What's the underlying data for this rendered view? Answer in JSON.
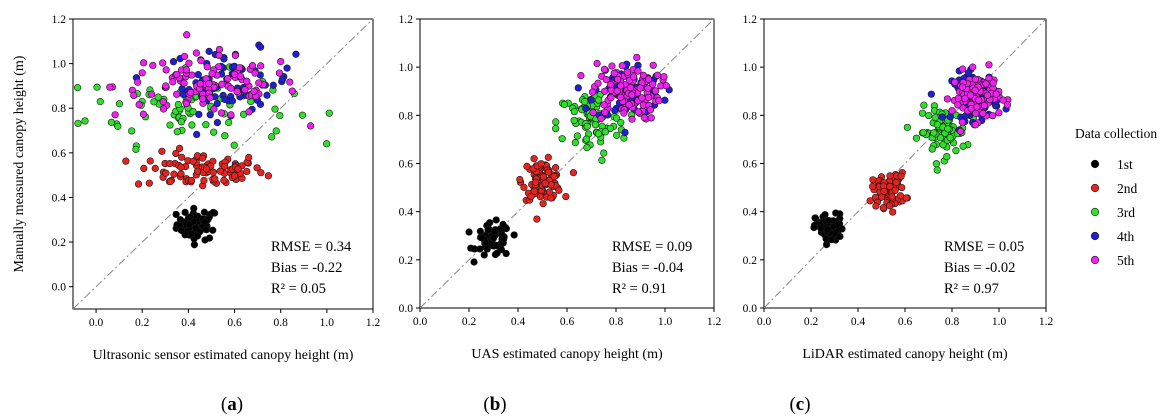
{
  "figure": {
    "y_axis_label": "Manually measured canopy height (m)",
    "legend_title": "Data collection",
    "legend_entries": [
      {
        "label": "1st",
        "color": "#000000"
      },
      {
        "label": "2nd",
        "color": "#e8231f"
      },
      {
        "label": "3rd",
        "color": "#2ee02a"
      },
      {
        "label": "4th",
        "color": "#1f1fd6"
      },
      {
        "label": "5th",
        "color": "#f21ff2"
      }
    ]
  },
  "chart_data": [
    {
      "type": "scatter",
      "panel_label": "(a)",
      "letter": "a",
      "xlabel": "Ultrasonic sensor estimated canopy height (m)",
      "ylabel": "Manually measured canopy height (m)",
      "xlim": [
        -0.1,
        1.2
      ],
      "ylim": [
        -0.1,
        1.2
      ],
      "x_ticks": [
        "0.0",
        "0.2",
        "0.4",
        "0.6",
        "0.8",
        "1.0",
        "1.2"
      ],
      "y_ticks": [
        "0.0",
        "0.2",
        "0.4",
        "0.6",
        "0.8",
        "1.0",
        "1.2"
      ],
      "reference_line": "1:1",
      "stats": [
        "RMSE = 0.34",
        "Bias = -0.22",
        "R² = 0.05"
      ],
      "series": [
        {
          "name": "1st",
          "color": "#000000",
          "x_mean": 0.44,
          "x_sd": 0.045,
          "y_mean": 0.28,
          "y_sd": 0.035
        },
        {
          "name": "2nd",
          "color": "#e8231f",
          "x_mean": 0.45,
          "x_sd": 0.14,
          "y_mean": 0.52,
          "y_sd": 0.04
        },
        {
          "name": "3rd",
          "color": "#2ee02a",
          "x_mean": 0.4,
          "x_sd": 0.22,
          "y_mean": 0.8,
          "y_sd": 0.08
        },
        {
          "name": "4th",
          "color": "#1f1fd6",
          "x_mean": 0.58,
          "x_sd": 0.14,
          "y_mean": 0.92,
          "y_sd": 0.07
        },
        {
          "name": "5th",
          "color": "#f21ff2",
          "x_mean": 0.48,
          "x_sd": 0.2,
          "y_mean": 0.9,
          "y_sd": 0.07
        }
      ]
    },
    {
      "type": "scatter",
      "panel_label": "(b)",
      "letter": "b",
      "xlabel": "UAS estimated canopy height (m)",
      "ylabel": "",
      "xlim": [
        0.0,
        1.2
      ],
      "ylim": [
        0.0,
        1.2
      ],
      "x_ticks": [
        "0.0",
        "0.2",
        "0.4",
        "0.6",
        "0.8",
        "1.0",
        "1.2"
      ],
      "y_ticks": [
        "0.0",
        "0.2",
        "0.4",
        "0.6",
        "0.8",
        "1.0",
        "1.2"
      ],
      "reference_line": "1:1",
      "stats": [
        "RMSE = 0.09",
        "Bias = -0.04",
        "R² = 0.91"
      ],
      "series": [
        {
          "name": "1st",
          "color": "#000000",
          "x_mean": 0.3,
          "x_sd": 0.035,
          "y_mean": 0.28,
          "y_sd": 0.035
        },
        {
          "name": "2nd",
          "color": "#e8231f",
          "x_mean": 0.5,
          "x_sd": 0.04,
          "y_mean": 0.53,
          "y_sd": 0.04
        },
        {
          "name": "3rd",
          "color": "#2ee02a",
          "x_mean": 0.7,
          "x_sd": 0.07,
          "y_mean": 0.77,
          "y_sd": 0.07
        },
        {
          "name": "4th",
          "color": "#1f1fd6",
          "x_mean": 0.85,
          "x_sd": 0.07,
          "y_mean": 0.9,
          "y_sd": 0.06
        },
        {
          "name": "5th",
          "color": "#f21ff2",
          "x_mean": 0.84,
          "x_sd": 0.07,
          "y_mean": 0.9,
          "y_sd": 0.06
        }
      ]
    },
    {
      "type": "scatter",
      "panel_label": "(c)",
      "letter": "c",
      "xlabel": "LiDAR estimated canopy height (m)",
      "ylabel": "",
      "xlim": [
        0.0,
        1.2
      ],
      "ylim": [
        0.0,
        1.2
      ],
      "x_ticks": [
        "0.0",
        "0.2",
        "0.4",
        "0.6",
        "0.8",
        "1.0",
        "1.2"
      ],
      "y_ticks": [
        "0.0",
        "0.2",
        "0.4",
        "0.6",
        "0.8",
        "1.0",
        "1.2"
      ],
      "reference_line": "1:1",
      "stats": [
        "RMSE = 0.05",
        "Bias = -0.02",
        "R² = 0.97"
      ],
      "series": [
        {
          "name": "1st",
          "color": "#000000",
          "x_mean": 0.28,
          "x_sd": 0.03,
          "y_mean": 0.33,
          "y_sd": 0.03
        },
        {
          "name": "2nd",
          "color": "#e8231f",
          "x_mean": 0.53,
          "x_sd": 0.035,
          "y_mean": 0.49,
          "y_sd": 0.035
        },
        {
          "name": "3rd",
          "color": "#2ee02a",
          "x_mean": 0.76,
          "x_sd": 0.05,
          "y_mean": 0.73,
          "y_sd": 0.05
        },
        {
          "name": "4th",
          "color": "#1f1fd6",
          "x_mean": 0.9,
          "x_sd": 0.05,
          "y_mean": 0.88,
          "y_sd": 0.05
        },
        {
          "name": "5th",
          "color": "#f21ff2",
          "x_mean": 0.9,
          "x_sd": 0.05,
          "y_mean": 0.88,
          "y_sd": 0.05
        }
      ]
    }
  ]
}
